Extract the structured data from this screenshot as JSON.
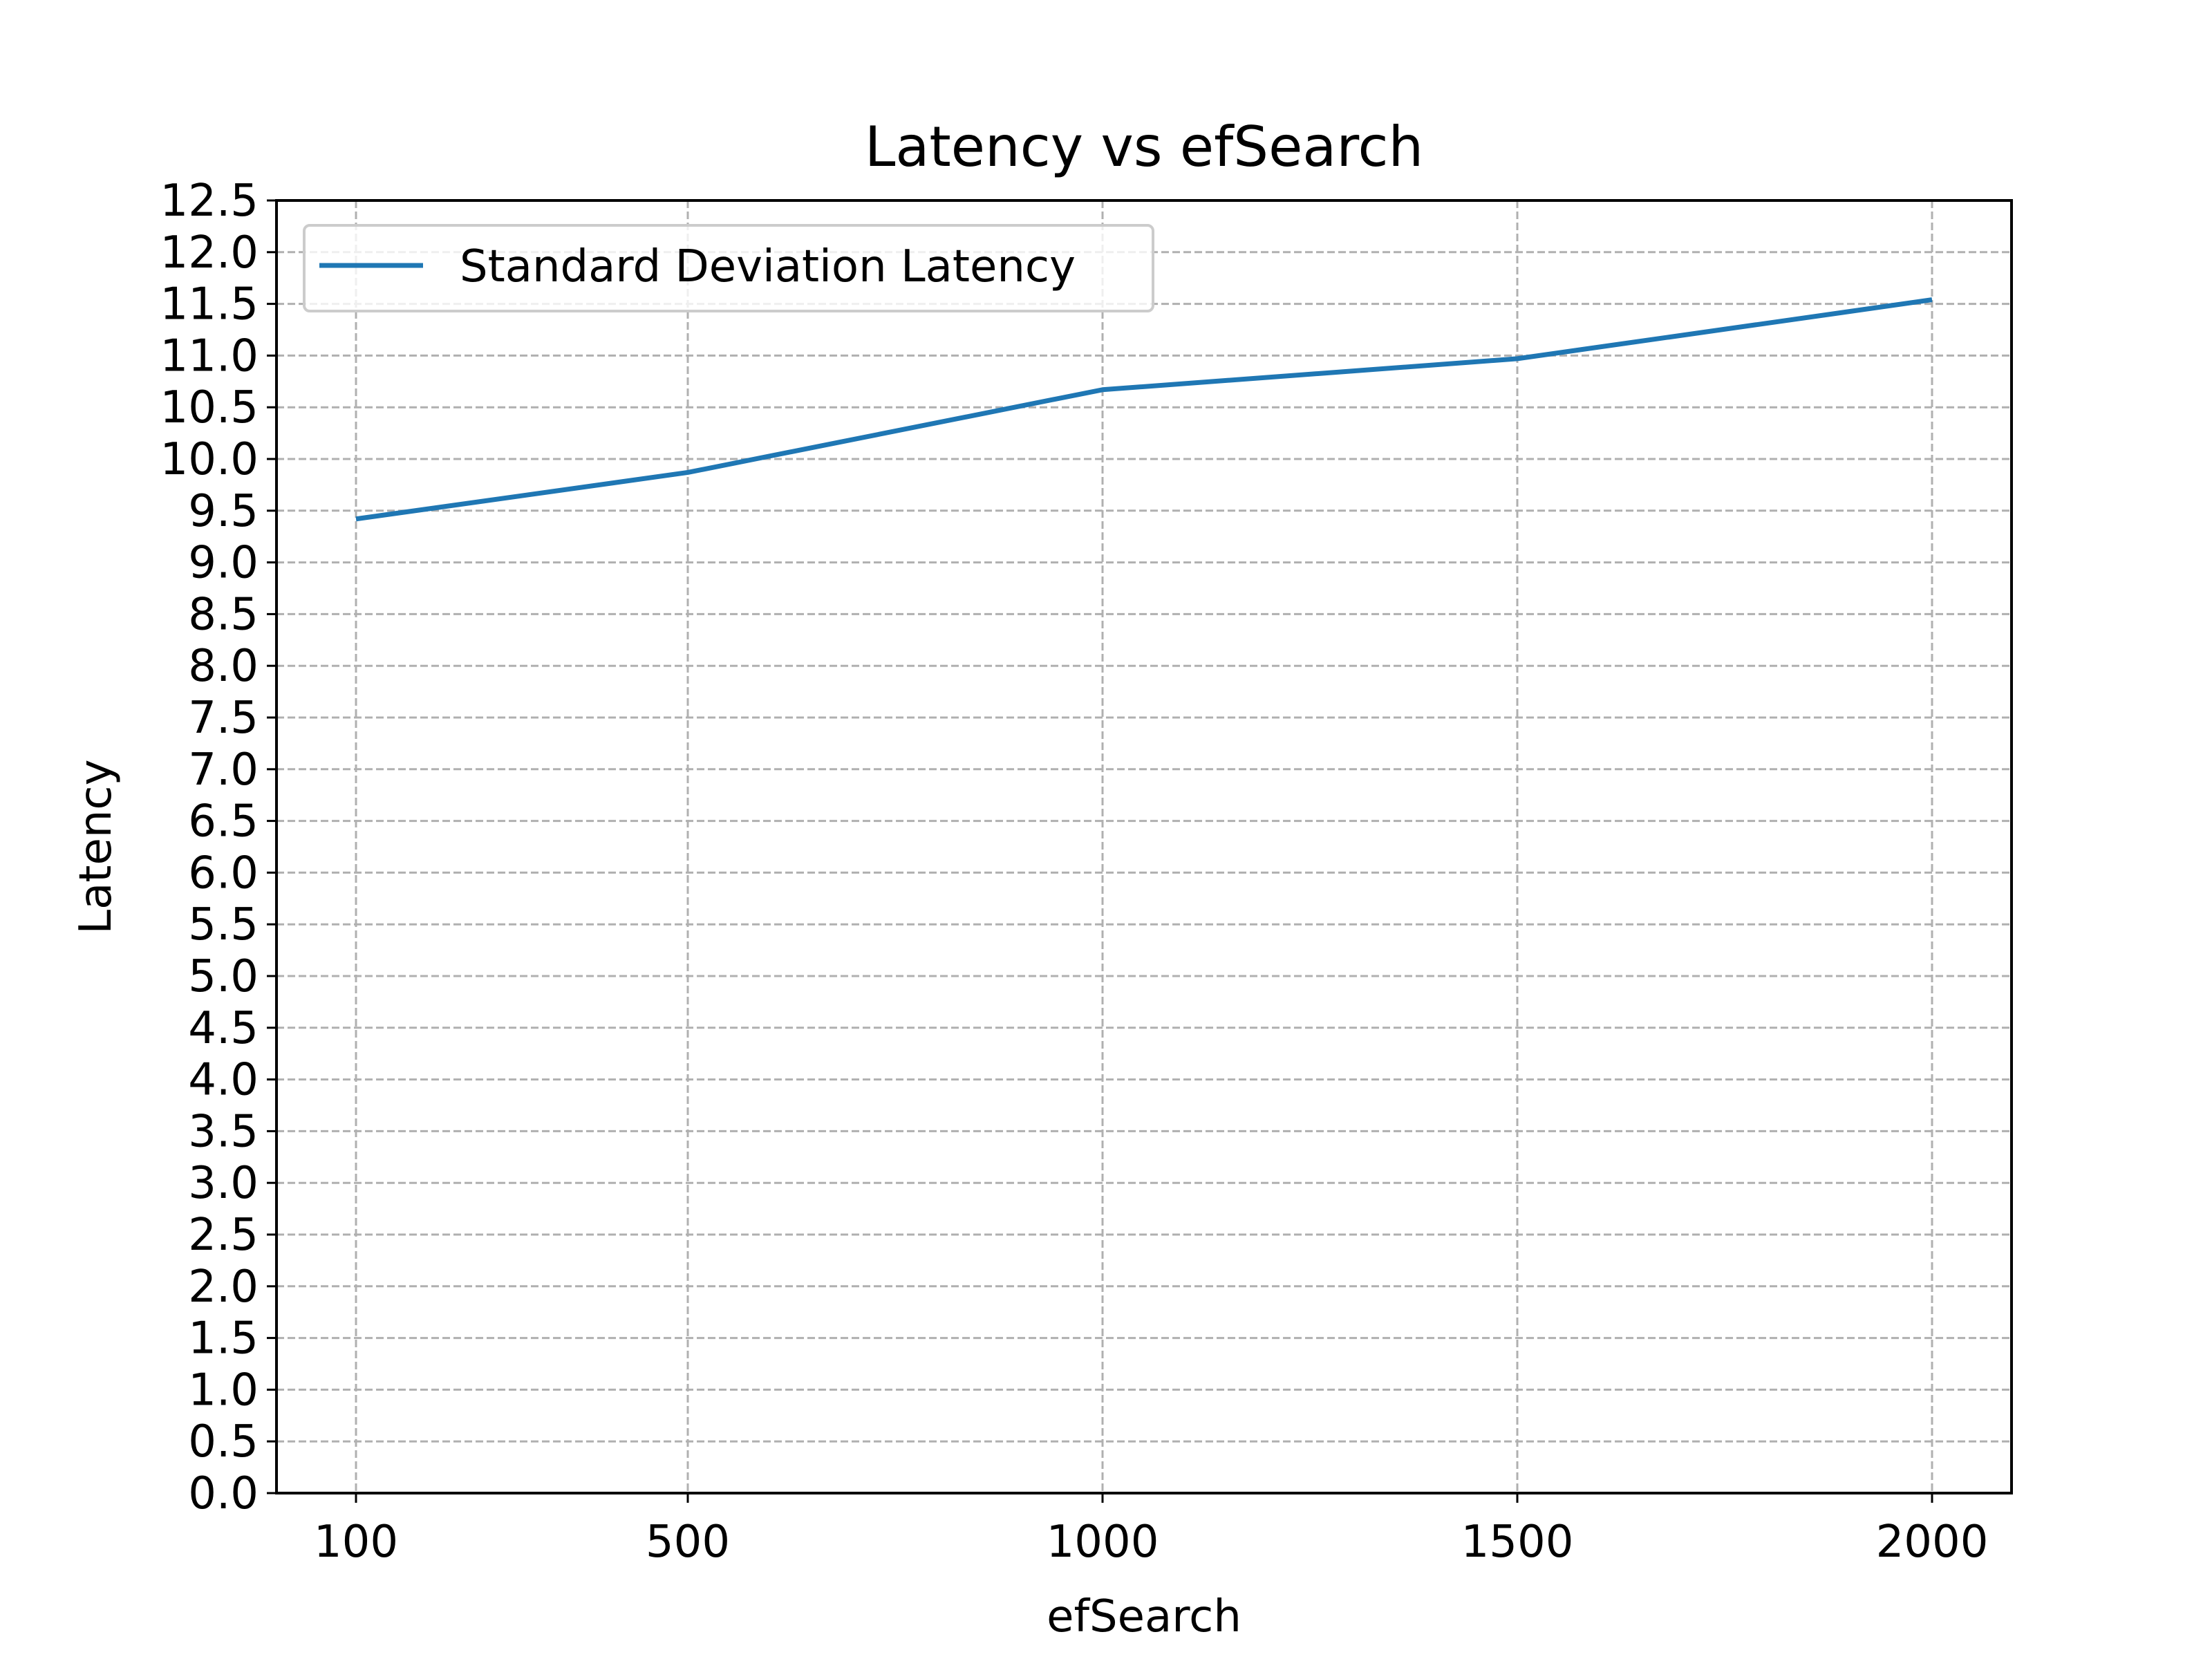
{
  "chart_data": {
    "type": "line",
    "title": "Latency vs efSearch",
    "xlabel": "efSearch",
    "ylabel": "Latency",
    "x": [
      100,
      500,
      1000,
      1500,
      2000
    ],
    "x_tick_labels": [
      "100",
      "500",
      "1000",
      "1500",
      "2000"
    ],
    "y_ticks": [
      0.0,
      0.5,
      1.0,
      1.5,
      2.0,
      2.5,
      3.0,
      3.5,
      4.0,
      4.5,
      5.0,
      5.5,
      6.0,
      6.5,
      7.0,
      7.5,
      8.0,
      8.5,
      9.0,
      9.5,
      10.0,
      10.5,
      11.0,
      11.5,
      12.0,
      12.5
    ],
    "y_tick_labels": [
      "0.0",
      "0.5",
      "1.0",
      "1.5",
      "2.0",
      "2.5",
      "3.0",
      "3.5",
      "4.0",
      "4.5",
      "5.0",
      "5.5",
      "6.0",
      "6.5",
      "7.0",
      "7.5",
      "8.0",
      "8.5",
      "9.0",
      "9.5",
      "10.0",
      "10.5",
      "11.0",
      "11.5",
      "12.0",
      "12.5"
    ],
    "ylim": [
      0,
      12.5
    ],
    "series": [
      {
        "name": "Standard Deviation Latency",
        "values": [
          9.42,
          9.87,
          10.67,
          10.97,
          11.54
        ],
        "color": "#1f77b4"
      }
    ],
    "grid": true,
    "legend_position": "top-left"
  }
}
